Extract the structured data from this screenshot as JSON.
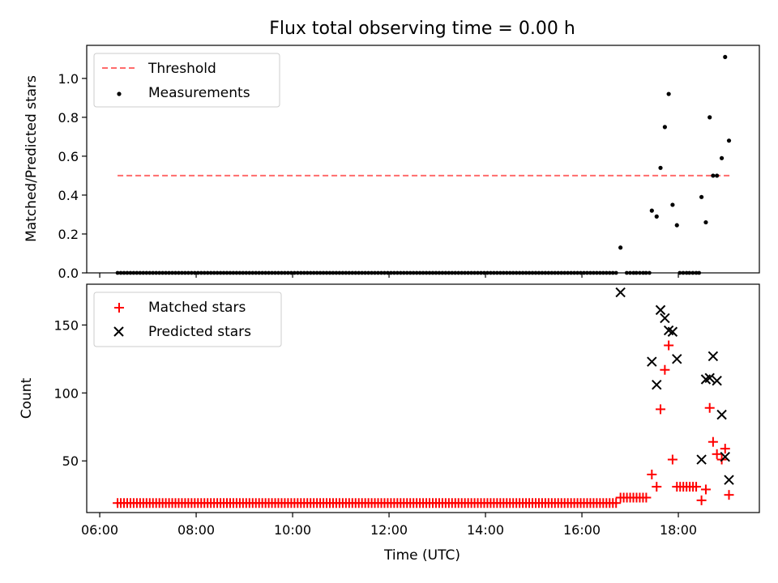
{
  "title": "Flux total observing time = 0.00 h",
  "colors": {
    "threshold": "#ff6b6b",
    "measurement": "#000000",
    "matched": "#ff0000",
    "predicted": "#000000"
  },
  "chart_data": [
    {
      "type": "scatter",
      "position": "top",
      "ylabel": "Matched/Predicted stars",
      "xlabel": "",
      "ylim": [
        0,
        1.17
      ],
      "xlim": [
        5.73,
        19.68
      ],
      "yticks": [
        0.0,
        0.2,
        0.4,
        0.6,
        0.8,
        1.0
      ],
      "ytick_labels": [
        "0.0",
        "0.2",
        "0.4",
        "0.6",
        "0.8",
        "1.0"
      ],
      "grid": false,
      "legend": {
        "placement": "top-left",
        "entries": [
          "Threshold",
          "Measurements"
        ]
      },
      "threshold": {
        "name": "Threshold",
        "y": 0.5,
        "x": [
          6.37,
          19.07
        ]
      },
      "zero_measurements": {
        "x_start": 6.37,
        "x_end": 16.72,
        "x_step": 0.0667,
        "y": 0,
        "extra_x": [
          16.93,
          17.0,
          17.07,
          17.13,
          17.2,
          17.27,
          17.33,
          17.4,
          18.03,
          18.1,
          18.17,
          18.23,
          18.3,
          18.37,
          18.43
        ]
      },
      "measurements": {
        "name": "Measurements",
        "x": [
          16.8,
          17.45,
          17.55,
          17.63,
          17.72,
          17.8,
          17.88,
          17.97,
          18.48,
          18.57,
          18.65,
          18.72,
          18.8,
          18.9,
          18.97,
          19.05
        ],
        "y": [
          0.13,
          0.32,
          0.29,
          0.54,
          0.75,
          0.92,
          0.35,
          0.245,
          0.39,
          0.26,
          0.8,
          0.5,
          0.5,
          0.59,
          1.11,
          0.68
        ]
      }
    },
    {
      "type": "scatter",
      "position": "bottom",
      "ylabel": "Count",
      "xlabel": "Time (UTC)",
      "ylim": [
        12,
        180
      ],
      "xlim": [
        5.73,
        19.68
      ],
      "yticks": [
        50,
        100,
        150
      ],
      "ytick_labels": [
        "50",
        "100",
        "150"
      ],
      "xticks": [
        6,
        8,
        10,
        12,
        14,
        16,
        18
      ],
      "xtick_labels": [
        "06:00",
        "08:00",
        "10:00",
        "12:00",
        "14:00",
        "16:00",
        "18:00"
      ],
      "grid": false,
      "legend": {
        "placement": "top-left",
        "entries": [
          "Matched stars",
          "Predicted stars"
        ]
      },
      "matched_baseline": {
        "segments": [
          {
            "x_start": 6.37,
            "x_end": 16.72,
            "x_step": 0.0667,
            "y": 19
          },
          {
            "x_start": 16.8,
            "x_end": 17.4,
            "x_step": 0.0667,
            "y": 23
          },
          {
            "x_start": 17.97,
            "x_end": 18.4,
            "x_step": 0.0667,
            "y": 31
          }
        ]
      },
      "matched": {
        "name": "Matched stars",
        "x": [
          17.45,
          17.55,
          17.63,
          17.72,
          17.8,
          17.88,
          18.48,
          18.57,
          18.65,
          18.72,
          18.8,
          18.9,
          18.97,
          19.05
        ],
        "y": [
          40,
          31,
          88,
          117,
          135,
          51,
          21,
          29,
          89,
          64,
          55,
          51,
          59,
          25
        ]
      },
      "predicted": {
        "name": "Predicted stars",
        "x": [
          16.8,
          17.45,
          17.55,
          17.63,
          17.72,
          17.8,
          17.88,
          17.97,
          18.48,
          18.57,
          18.65,
          18.72,
          18.8,
          18.9,
          18.97,
          19.05
        ],
        "y": [
          174,
          123,
          106,
          161,
          155,
          146,
          145,
          125,
          51,
          110,
          111,
          127,
          109,
          84,
          53,
          36
        ]
      }
    }
  ]
}
